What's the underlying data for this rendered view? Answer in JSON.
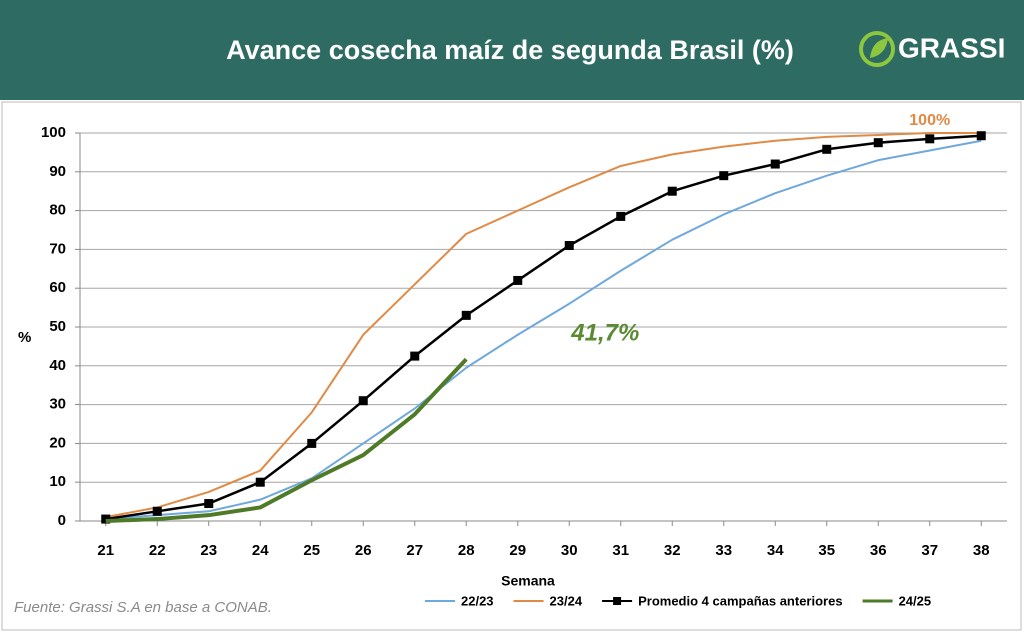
{
  "chart_data": {
    "type": "line",
    "title": "Avance cosecha maíz de segunda Brasil (%)",
    "brand": "GRASSI",
    "source": "Fuente: Grassi S.A en base a CONAB.",
    "x_label": "Semana",
    "y_label": "%",
    "x": [
      21,
      22,
      23,
      24,
      25,
      26,
      27,
      28,
      29,
      30,
      31,
      32,
      33,
      34,
      35,
      36,
      37,
      38
    ],
    "xlim": [
      20.5,
      38.5
    ],
    "xticks": [
      21,
      22,
      23,
      24,
      25,
      26,
      27,
      28,
      29,
      30,
      31,
      32,
      33,
      34,
      35,
      36,
      37,
      38
    ],
    "ylim": [
      0,
      100
    ],
    "yticks": [
      0,
      10,
      20,
      30,
      40,
      50,
      60,
      70,
      80,
      90,
      100
    ],
    "grid": true,
    "series": [
      {
        "name": "22/23",
        "color": "#6fa8dc",
        "values": [
          0.5,
          1.5,
          2.5,
          5.5,
          11,
          20,
          29,
          39.5,
          48,
          56,
          64.5,
          72.5,
          79,
          84.5,
          89,
          93,
          95.5,
          98
        ]
      },
      {
        "name": "23/24",
        "color": "#e08a45",
        "values": [
          1,
          3.5,
          7.5,
          13,
          28,
          48,
          61,
          74,
          80,
          86,
          91.5,
          94.5,
          96.5,
          98,
          99,
          99.5,
          100,
          100
        ]
      },
      {
        "name": "Promedio 4 campañas anteriores",
        "color": "#000000",
        "marker": "square",
        "values": [
          0.5,
          2.5,
          4.5,
          10,
          20,
          31,
          42.5,
          53,
          62,
          71,
          78.5,
          85,
          89,
          92,
          95.8,
          97.5,
          98.5,
          99.3
        ]
      },
      {
        "name": "24/25",
        "color": "#4f7a28",
        "values": [
          0,
          0.5,
          1.5,
          3.5,
          10.5,
          17,
          27.5,
          41.7,
          null,
          null,
          null,
          null,
          null,
          null,
          null,
          null,
          null,
          null
        ]
      }
    ],
    "annotations": [
      {
        "text": "100%",
        "x": 37,
        "y": 100,
        "color": "#e08a45"
      },
      {
        "text": "41,7%",
        "x": 30.7,
        "y": 45,
        "color": "#5a8a32"
      }
    ]
  }
}
